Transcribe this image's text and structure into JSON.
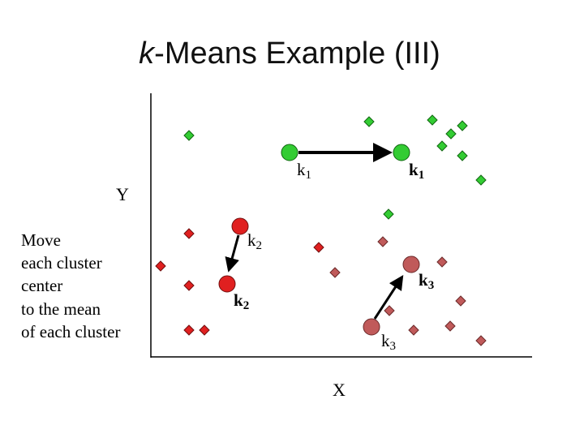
{
  "header": {
    "title_emphasis": "k",
    "title_rest": "-Means Example (III)"
  },
  "axes": {
    "y_label": "Y",
    "x_label": "X"
  },
  "caption": {
    "lines": [
      "Move",
      "each cluster",
      "center",
      "to the mean",
      "of each cluster"
    ]
  },
  "centers": [
    {
      "letter": "k",
      "index": "1"
    },
    {
      "letter": "k",
      "index": "1"
    },
    {
      "letter": "k",
      "index": "2"
    },
    {
      "letter": "k",
      "index": "2"
    },
    {
      "letter": "k",
      "index": "3"
    },
    {
      "letter": "k",
      "index": "3"
    }
  ]
}
